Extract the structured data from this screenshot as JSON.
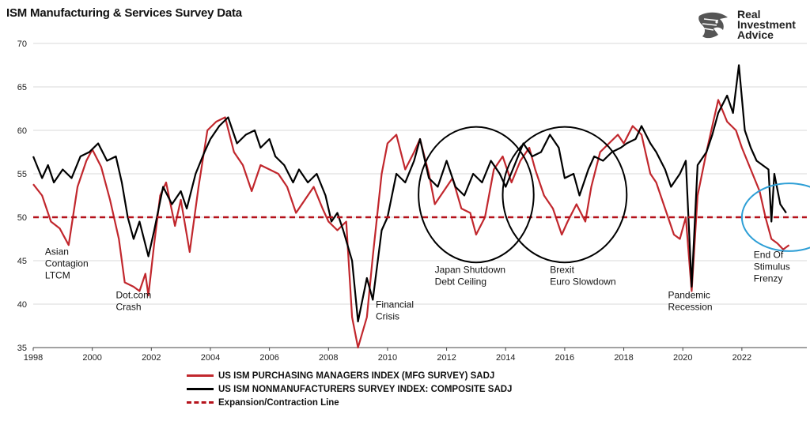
{
  "header": {
    "title": "ISM Manufacturing & Services Survey Data"
  },
  "logo": {
    "line1": "Real",
    "line2": "Investment",
    "line3": "Advice",
    "icon": "eagle-head-icon"
  },
  "colors": {
    "mfg": "#c1272d",
    "services": "#000000",
    "threshold": "#b5121b",
    "circle_black": "#000000",
    "circle_blue": "#2e9fd6",
    "grid": "#d9d9d9"
  },
  "chart_data": {
    "type": "line",
    "title": "ISM Manufacturing & Services Survey Data",
    "xlabel": "",
    "ylabel": "",
    "xlim": [
      1998,
      2024.2
    ],
    "ylim": [
      35,
      70
    ],
    "y_ticks": [
      35,
      40,
      45,
      50,
      55,
      60,
      65,
      70
    ],
    "x_ticks": [
      1998,
      2000,
      2002,
      2004,
      2006,
      2008,
      2010,
      2012,
      2014,
      2016,
      2018,
      2020,
      2022
    ],
    "grid": "horizontal",
    "threshold": {
      "name": "Expansion/Contraction Line",
      "value": 50
    },
    "series": [
      {
        "name": "US ISM PURCHASING MANAGERS INDEX (MFG SURVEY) SADJ",
        "points": [
          [
            1998,
            53.8
          ],
          [
            1998.3,
            52.5
          ],
          [
            1998.6,
            49.5
          ],
          [
            1998.9,
            48.7
          ],
          [
            1999.2,
            46.8
          ],
          [
            1999.5,
            53.5
          ],
          [
            1999.8,
            56.5
          ],
          [
            2000.0,
            57.8
          ],
          [
            2000.3,
            55.8
          ],
          [
            2000.6,
            52.0
          ],
          [
            2000.9,
            47.5
          ],
          [
            2001.1,
            42.5
          ],
          [
            2001.4,
            42.0
          ],
          [
            2001.6,
            41.5
          ],
          [
            2001.8,
            43.5
          ],
          [
            2001.9,
            41.0
          ],
          [
            2002.1,
            47.0
          ],
          [
            2002.3,
            52.5
          ],
          [
            2002.5,
            54.0
          ],
          [
            2002.8,
            49.0
          ],
          [
            2003.0,
            52.0
          ],
          [
            2003.3,
            46.0
          ],
          [
            2003.6,
            53.5
          ],
          [
            2003.9,
            60.0
          ],
          [
            2004.2,
            61.0
          ],
          [
            2004.5,
            61.5
          ],
          [
            2004.8,
            57.5
          ],
          [
            2005.1,
            56.0
          ],
          [
            2005.4,
            53.0
          ],
          [
            2005.7,
            56.0
          ],
          [
            2006.0,
            55.5
          ],
          [
            2006.3,
            55.0
          ],
          [
            2006.6,
            53.5
          ],
          [
            2006.9,
            50.5
          ],
          [
            2007.2,
            52.0
          ],
          [
            2007.5,
            53.5
          ],
          [
            2007.8,
            51.0
          ],
          [
            2008.0,
            49.5
          ],
          [
            2008.3,
            48.5
          ],
          [
            2008.6,
            49.5
          ],
          [
            2008.8,
            38.5
          ],
          [
            2009.0,
            35.0
          ],
          [
            2009.3,
            38.5
          ],
          [
            2009.5,
            45.5
          ],
          [
            2009.8,
            55.0
          ],
          [
            2010.0,
            58.5
          ],
          [
            2010.3,
            59.5
          ],
          [
            2010.6,
            55.5
          ],
          [
            2010.9,
            57.5
          ],
          [
            2011.1,
            59.0
          ],
          [
            2011.4,
            55.0
          ],
          [
            2011.6,
            51.5
          ],
          [
            2011.9,
            53.0
          ],
          [
            2012.2,
            54.5
          ],
          [
            2012.5,
            51.0
          ],
          [
            2012.8,
            50.5
          ],
          [
            2013.0,
            48.0
          ],
          [
            2013.3,
            50.0
          ],
          [
            2013.6,
            55.5
          ],
          [
            2013.9,
            57.0
          ],
          [
            2014.2,
            54.0
          ],
          [
            2014.5,
            56.5
          ],
          [
            2014.8,
            58.0
          ],
          [
            2015.0,
            55.5
          ],
          [
            2015.3,
            52.5
          ],
          [
            2015.6,
            51.0
          ],
          [
            2015.9,
            48.0
          ],
          [
            2016.1,
            49.5
          ],
          [
            2016.4,
            51.5
          ],
          [
            2016.7,
            49.5
          ],
          [
            2016.9,
            53.5
          ],
          [
            2017.2,
            57.5
          ],
          [
            2017.5,
            58.5
          ],
          [
            2017.8,
            59.5
          ],
          [
            2018.0,
            58.5
          ],
          [
            2018.3,
            60.5
          ],
          [
            2018.6,
            59.5
          ],
          [
            2018.9,
            55.0
          ],
          [
            2019.1,
            54.0
          ],
          [
            2019.4,
            51.0
          ],
          [
            2019.7,
            48.0
          ],
          [
            2019.9,
            47.5
          ],
          [
            2020.1,
            50.0
          ],
          [
            2020.3,
            41.5
          ],
          [
            2020.5,
            52.5
          ],
          [
            2020.8,
            57.5
          ],
          [
            2021.0,
            60.5
          ],
          [
            2021.2,
            63.5
          ],
          [
            2021.5,
            61.0
          ],
          [
            2021.8,
            60.0
          ],
          [
            2022.0,
            58.0
          ],
          [
            2022.3,
            55.5
          ],
          [
            2022.6,
            53.0
          ],
          [
            2022.8,
            50.0
          ],
          [
            2023.0,
            47.5
          ],
          [
            2023.2,
            47.0
          ],
          [
            2023.4,
            46.3
          ],
          [
            2023.6,
            46.8
          ]
        ]
      },
      {
        "name": "US ISM NONMANUFACTURERS SURVEY INDEX: COMPOSITE SADJ",
        "points": [
          [
            1998,
            57.0
          ],
          [
            1998.3,
            54.5
          ],
          [
            1998.5,
            56.0
          ],
          [
            1998.7,
            54.0
          ],
          [
            1999.0,
            55.5
          ],
          [
            1999.3,
            54.5
          ],
          [
            1999.6,
            57.0
          ],
          [
            1999.9,
            57.5
          ],
          [
            2000.2,
            58.5
          ],
          [
            2000.5,
            56.5
          ],
          [
            2000.8,
            57.0
          ],
          [
            2001.0,
            54.0
          ],
          [
            2001.2,
            50.0
          ],
          [
            2001.4,
            47.5
          ],
          [
            2001.6,
            49.5
          ],
          [
            2001.9,
            45.5
          ],
          [
            2002.1,
            48.5
          ],
          [
            2002.4,
            53.5
          ],
          [
            2002.7,
            51.5
          ],
          [
            2003.0,
            53.0
          ],
          [
            2003.2,
            51.0
          ],
          [
            2003.5,
            55.0
          ],
          [
            2003.8,
            57.5
          ],
          [
            2004.0,
            59.0
          ],
          [
            2004.3,
            60.5
          ],
          [
            2004.6,
            61.5
          ],
          [
            2004.9,
            58.5
          ],
          [
            2005.2,
            59.5
          ],
          [
            2005.5,
            60.0
          ],
          [
            2005.7,
            58.0
          ],
          [
            2006.0,
            59.0
          ],
          [
            2006.2,
            57.0
          ],
          [
            2006.5,
            56.0
          ],
          [
            2006.8,
            54.0
          ],
          [
            2007.0,
            55.5
          ],
          [
            2007.3,
            54.0
          ],
          [
            2007.6,
            55.0
          ],
          [
            2007.9,
            52.5
          ],
          [
            2008.1,
            49.5
          ],
          [
            2008.3,
            50.5
          ],
          [
            2008.5,
            48.5
          ],
          [
            2008.8,
            45.0
          ],
          [
            2009.0,
            38.0
          ],
          [
            2009.3,
            43.0
          ],
          [
            2009.5,
            40.5
          ],
          [
            2009.8,
            48.5
          ],
          [
            2010.0,
            50.0
          ],
          [
            2010.3,
            55.0
          ],
          [
            2010.6,
            54.0
          ],
          [
            2010.9,
            56.5
          ],
          [
            2011.1,
            59.0
          ],
          [
            2011.4,
            54.5
          ],
          [
            2011.7,
            53.5
          ],
          [
            2012.0,
            56.5
          ],
          [
            2012.3,
            53.5
          ],
          [
            2012.6,
            52.5
          ],
          [
            2012.9,
            55.0
          ],
          [
            2013.2,
            54.0
          ],
          [
            2013.5,
            56.5
          ],
          [
            2013.8,
            55.0
          ],
          [
            2014.0,
            53.5
          ],
          [
            2014.3,
            56.0
          ],
          [
            2014.6,
            58.5
          ],
          [
            2014.9,
            57.0
          ],
          [
            2015.2,
            57.5
          ],
          [
            2015.5,
            59.5
          ],
          [
            2015.8,
            58.0
          ],
          [
            2016.0,
            54.5
          ],
          [
            2016.3,
            55.0
          ],
          [
            2016.5,
            52.5
          ],
          [
            2016.8,
            55.5
          ],
          [
            2017.0,
            57.0
          ],
          [
            2017.3,
            56.5
          ],
          [
            2017.6,
            57.5
          ],
          [
            2017.9,
            58.0
          ],
          [
            2018.1,
            58.5
          ],
          [
            2018.4,
            59.0
          ],
          [
            2018.6,
            60.5
          ],
          [
            2018.9,
            58.5
          ],
          [
            2019.1,
            57.5
          ],
          [
            2019.4,
            55.5
          ],
          [
            2019.6,
            53.5
          ],
          [
            2019.9,
            55.0
          ],
          [
            2020.1,
            56.5
          ],
          [
            2020.3,
            42.0
          ],
          [
            2020.5,
            56.0
          ],
          [
            2020.8,
            57.5
          ],
          [
            2021.0,
            59.5
          ],
          [
            2021.2,
            62.0
          ],
          [
            2021.5,
            64.0
          ],
          [
            2021.7,
            62.0
          ],
          [
            2021.9,
            67.5
          ],
          [
            2022.1,
            60.0
          ],
          [
            2022.3,
            58.0
          ],
          [
            2022.5,
            56.5
          ],
          [
            2022.7,
            56.0
          ],
          [
            2022.9,
            55.5
          ],
          [
            2023.0,
            49.5
          ],
          [
            2023.1,
            55.0
          ],
          [
            2023.3,
            51.5
          ],
          [
            2023.5,
            50.5
          ]
        ]
      }
    ],
    "annotations": [
      {
        "lines": [
          "Asian",
          "Contagion",
          "LTCM"
        ],
        "x": 1998.4,
        "y": 45.7
      },
      {
        "lines": [
          "Dot.com",
          "Crash"
        ],
        "x": 2000.8,
        "y": 40.7
      },
      {
        "lines": [
          "Financial",
          "Crisis"
        ],
        "x": 2009.6,
        "y": 39.6
      },
      {
        "lines": [
          "Japan Shutdown",
          "Debt Ceiling"
        ],
        "x": 2011.6,
        "y": 43.6
      },
      {
        "lines": [
          "Brexit",
          "Euro Slowdown"
        ],
        "x": 2015.5,
        "y": 43.6
      },
      {
        "lines": [
          "Pandemic",
          "Recession"
        ],
        "x": 2019.5,
        "y": 40.7
      },
      {
        "lines": [
          "End Of",
          "Stimulus",
          "Frenzy"
        ],
        "x": 2022.4,
        "y": 45.3
      }
    ],
    "highlight_circles": [
      {
        "color": "circle_black",
        "cx": 2013.0,
        "cy": 52.6,
        "rx": 1.95,
        "ry": 7.8
      },
      {
        "color": "circle_black",
        "cx": 2016.0,
        "cy": 52.6,
        "rx": 2.1,
        "ry": 7.8
      },
      {
        "color": "circle_blue",
        "cx": 2023.6,
        "cy": 50.0,
        "rx": 1.6,
        "ry": 3.9
      }
    ]
  },
  "legend": [
    {
      "label": "US ISM PURCHASING MANAGERS INDEX (MFG SURVEY) SADJ",
      "style": "sw-red"
    },
    {
      "label": "US ISM NONMANUFACTURERS SURVEY INDEX: COMPOSITE SADJ",
      "style": "sw-black"
    },
    {
      "label": "Expansion/Contraction Line",
      "style": "sw-dash"
    }
  ]
}
